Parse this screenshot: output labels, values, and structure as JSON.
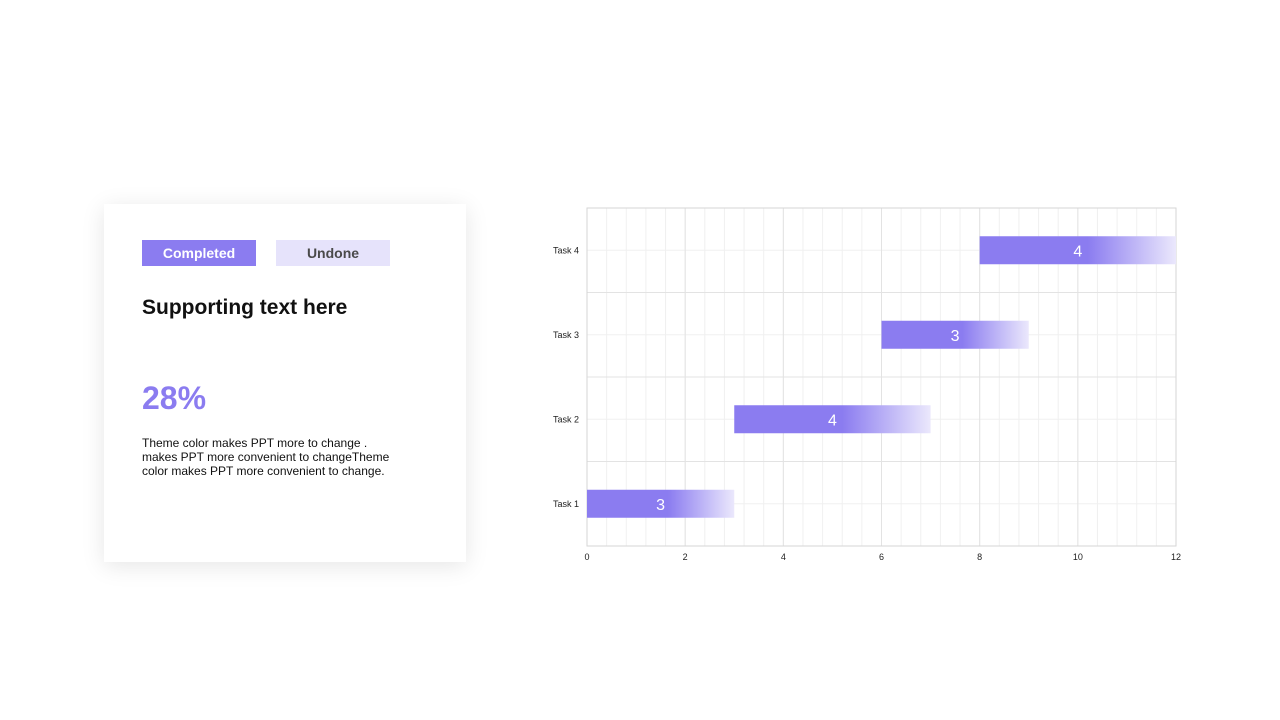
{
  "card": {
    "completed_label": "Completed",
    "undone_label": "Undone",
    "title": "Supporting text here",
    "percent": "28%",
    "body": "Theme  color makes PPT more to change . makes PPT more convenient to changeTheme color makes PPT more convenient to change."
  },
  "colors": {
    "accent": "#8b7cf0",
    "accent_light": "#e6e3fb",
    "grid": "#e3e3e3"
  },
  "chart_data": {
    "type": "bar",
    "orientation": "horizontal",
    "categories": [
      "Task 1",
      "Task 2",
      "Task 3",
      "Task 4"
    ],
    "starts": [
      0,
      3,
      6,
      8
    ],
    "values": [
      3,
      4,
      3,
      4
    ],
    "data_labels": [
      "3",
      "4",
      "3",
      "4"
    ],
    "xlim": [
      0,
      12
    ],
    "x_ticks": [
      0,
      2,
      4,
      6,
      8,
      10,
      12
    ],
    "grid": true,
    "legend": "none"
  }
}
